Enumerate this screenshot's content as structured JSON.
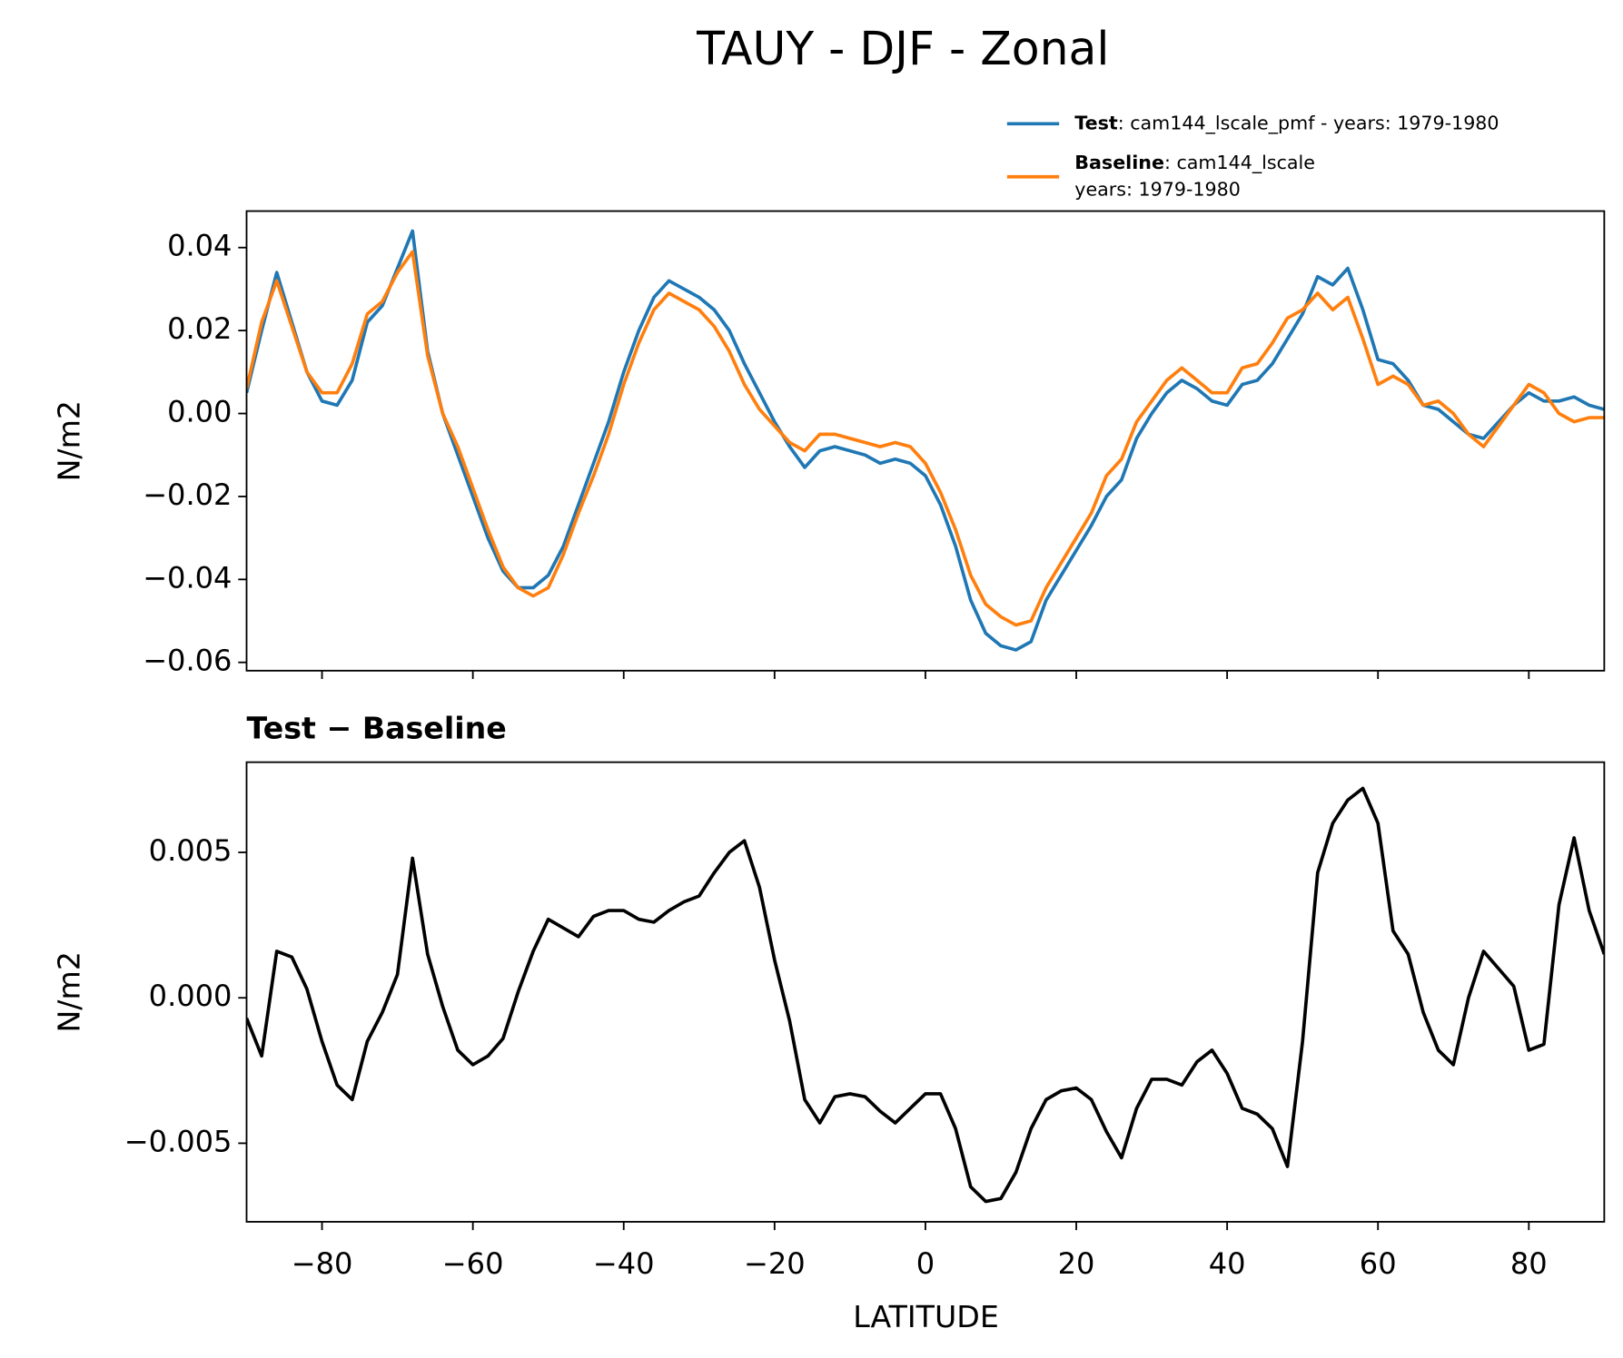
{
  "chart_data": [
    {
      "type": "line",
      "title": "TAUY - DJF - Zonal",
      "ylabel": "N/m2",
      "x": [
        -90,
        -88,
        -86,
        -84,
        -82,
        -80,
        -78,
        -76,
        -74,
        -72,
        -70,
        -68,
        -66,
        -64,
        -62,
        -60,
        -58,
        -56,
        -54,
        -52,
        -50,
        -48,
        -46,
        -44,
        -42,
        -40,
        -38,
        -36,
        -34,
        -32,
        -30,
        -28,
        -26,
        -24,
        -22,
        -20,
        -18,
        -16,
        -14,
        -12,
        -10,
        -8,
        -6,
        -4,
        -2,
        0,
        2,
        4,
        6,
        8,
        10,
        12,
        14,
        16,
        18,
        20,
        22,
        24,
        26,
        28,
        30,
        32,
        34,
        36,
        38,
        40,
        42,
        44,
        46,
        48,
        50,
        52,
        54,
        56,
        58,
        60,
        62,
        64,
        66,
        68,
        70,
        72,
        74,
        76,
        78,
        80,
        82,
        84,
        86,
        88,
        90
      ],
      "series": [
        {
          "name": "Test",
          "description": [
            ": cam144_lscale_pmf - years: 1979-1980"
          ],
          "color": "#1f77b4",
          "values": [
            0.005,
            0.02,
            0.034,
            0.022,
            0.01,
            0.003,
            0.002,
            0.008,
            0.022,
            0.026,
            0.035,
            0.044,
            0.015,
            0.0,
            -0.01,
            -0.02,
            -0.03,
            -0.038,
            -0.042,
            -0.042,
            -0.039,
            -0.032,
            -0.022,
            -0.012,
            -0.002,
            0.01,
            0.02,
            0.028,
            0.032,
            0.03,
            0.028,
            0.025,
            0.02,
            0.012,
            0.005,
            -0.002,
            -0.008,
            -0.013,
            -0.009,
            -0.008,
            -0.009,
            -0.01,
            -0.012,
            -0.011,
            -0.012,
            -0.015,
            -0.022,
            -0.032,
            -0.045,
            -0.053,
            -0.056,
            -0.057,
            -0.055,
            -0.045,
            -0.039,
            -0.033,
            -0.027,
            -0.02,
            -0.016,
            -0.006,
            0.0,
            0.005,
            0.008,
            0.006,
            0.003,
            0.002,
            0.007,
            0.008,
            0.012,
            0.018,
            0.024,
            0.033,
            0.031,
            0.035,
            0.025,
            0.013,
            0.012,
            0.008,
            0.002,
            0.001,
            -0.002,
            -0.005,
            -0.006,
            -0.002,
            0.002,
            0.005,
            0.003,
            0.003,
            0.004,
            0.002,
            0.001
          ]
        },
        {
          "name": "Baseline",
          "description": [
            ": cam144_lscale",
            "years: 1979-1980"
          ],
          "color": "#ff7f0e",
          "values": [
            0.006,
            0.022,
            0.032,
            0.021,
            0.01,
            0.005,
            0.005,
            0.012,
            0.024,
            0.027,
            0.034,
            0.039,
            0.014,
            0.0,
            -0.008,
            -0.018,
            -0.028,
            -0.037,
            -0.042,
            -0.044,
            -0.042,
            -0.034,
            -0.024,
            -0.015,
            -0.005,
            0.007,
            0.017,
            0.025,
            0.029,
            0.027,
            0.025,
            0.021,
            0.015,
            0.007,
            0.001,
            -0.003,
            -0.007,
            -0.009,
            -0.005,
            -0.005,
            -0.006,
            -0.007,
            -0.008,
            -0.007,
            -0.008,
            -0.012,
            -0.019,
            -0.028,
            -0.039,
            -0.046,
            -0.049,
            -0.051,
            -0.05,
            -0.042,
            -0.036,
            -0.03,
            -0.024,
            -0.015,
            -0.011,
            -0.002,
            0.003,
            0.008,
            0.011,
            0.008,
            0.005,
            0.005,
            0.011,
            0.012,
            0.017,
            0.023,
            0.025,
            0.029,
            0.025,
            0.028,
            0.018,
            0.007,
            0.009,
            0.007,
            0.002,
            0.003,
            0.0,
            -0.005,
            -0.008,
            -0.003,
            0.002,
            0.007,
            0.005,
            0.0,
            -0.002,
            -0.001,
            -0.001
          ]
        }
      ],
      "xlim": [
        -90,
        90
      ],
      "xticks": [
        {
          "value": -80,
          "label": "−80"
        },
        {
          "value": -60,
          "label": "−60"
        },
        {
          "value": -40,
          "label": "−40"
        },
        {
          "value": -20,
          "label": "−20"
        },
        0,
        20,
        40,
        60,
        80
      ],
      "show_xtick_labels": false,
      "ylim": [
        -0.062,
        0.0488
      ],
      "yticks": [
        0.04,
        0.02,
        {
          "value": 0,
          "label": "0.00"
        },
        {
          "value": -0.02,
          "label": "−0.02"
        },
        {
          "value": -0.04,
          "label": "−0.04"
        },
        {
          "value": -0.06,
          "label": "−0.06"
        }
      ]
    },
    {
      "type": "line",
      "title": "Test − Baseline",
      "ylabel": "N/m2",
      "xlabel": "LATITUDE",
      "x": [
        -90,
        -88,
        -86,
        -84,
        -82,
        -80,
        -78,
        -76,
        -74,
        -72,
        -70,
        -68,
        -66,
        -64,
        -62,
        -60,
        -58,
        -56,
        -54,
        -52,
        -50,
        -48,
        -46,
        -44,
        -42,
        -40,
        -38,
        -36,
        -34,
        -32,
        -30,
        -28,
        -26,
        -24,
        -22,
        -20,
        -18,
        -16,
        -14,
        -12,
        -10,
        -8,
        -6,
        -4,
        -2,
        0,
        2,
        4,
        6,
        8,
        10,
        12,
        14,
        16,
        18,
        20,
        22,
        24,
        26,
        28,
        30,
        32,
        34,
        36,
        38,
        40,
        42,
        44,
        46,
        48,
        50,
        52,
        54,
        56,
        58,
        60,
        62,
        64,
        66,
        68,
        70,
        72,
        74,
        76,
        78,
        80,
        82,
        84,
        86,
        88,
        90
      ],
      "series": [
        {
          "color": "#000000",
          "values": [
            -0.0007,
            -0.002,
            0.0016,
            0.0014,
            0.0003,
            -0.0015,
            -0.003,
            -0.0035,
            -0.0015,
            -0.0005,
            0.0008,
            0.0048,
            0.0015,
            -0.0003,
            -0.0018,
            -0.0023,
            -0.002,
            -0.0014,
            0.0002,
            0.0016,
            0.0027,
            0.0024,
            0.0021,
            0.0028,
            0.003,
            0.003,
            0.0027,
            0.0026,
            0.003,
            0.0033,
            0.0035,
            0.0043,
            0.005,
            0.0054,
            0.0038,
            0.0013,
            -0.0008,
            -0.0035,
            -0.0043,
            -0.0034,
            -0.0033,
            -0.0034,
            -0.0039,
            -0.0043,
            -0.0038,
            -0.0033,
            -0.0033,
            -0.0045,
            -0.0065,
            -0.007,
            -0.0069,
            -0.006,
            -0.0045,
            -0.0035,
            -0.0032,
            -0.0031,
            -0.0035,
            -0.0046,
            -0.0055,
            -0.0038,
            -0.0028,
            -0.0028,
            -0.003,
            -0.0022,
            -0.0018,
            -0.0026,
            -0.0038,
            -0.004,
            -0.0045,
            -0.0058,
            -0.0015,
            0.0043,
            0.006,
            0.0068,
            0.0072,
            0.006,
            0.0023,
            0.0015,
            -0.0005,
            -0.0018,
            -0.0023,
            0.0,
            0.0016,
            0.001,
            0.0004,
            -0.0018,
            -0.0016,
            0.0032,
            0.0055,
            0.003,
            0.0015
          ]
        }
      ],
      "xlim": [
        -90,
        90
      ],
      "xticks": [
        {
          "value": -80,
          "label": "−80"
        },
        {
          "value": -60,
          "label": "−60"
        },
        {
          "value": -40,
          "label": "−40"
        },
        {
          "value": -20,
          "label": "−20"
        },
        0,
        20,
        40,
        60,
        80
      ],
      "show_xtick_labels": true,
      "ylim": [
        -0.0077,
        0.0081
      ],
      "yticks": [
        0.005,
        {
          "value": 0,
          "label": "0.000"
        },
        {
          "value": -0.005,
          "label": "−0.005"
        }
      ]
    }
  ]
}
